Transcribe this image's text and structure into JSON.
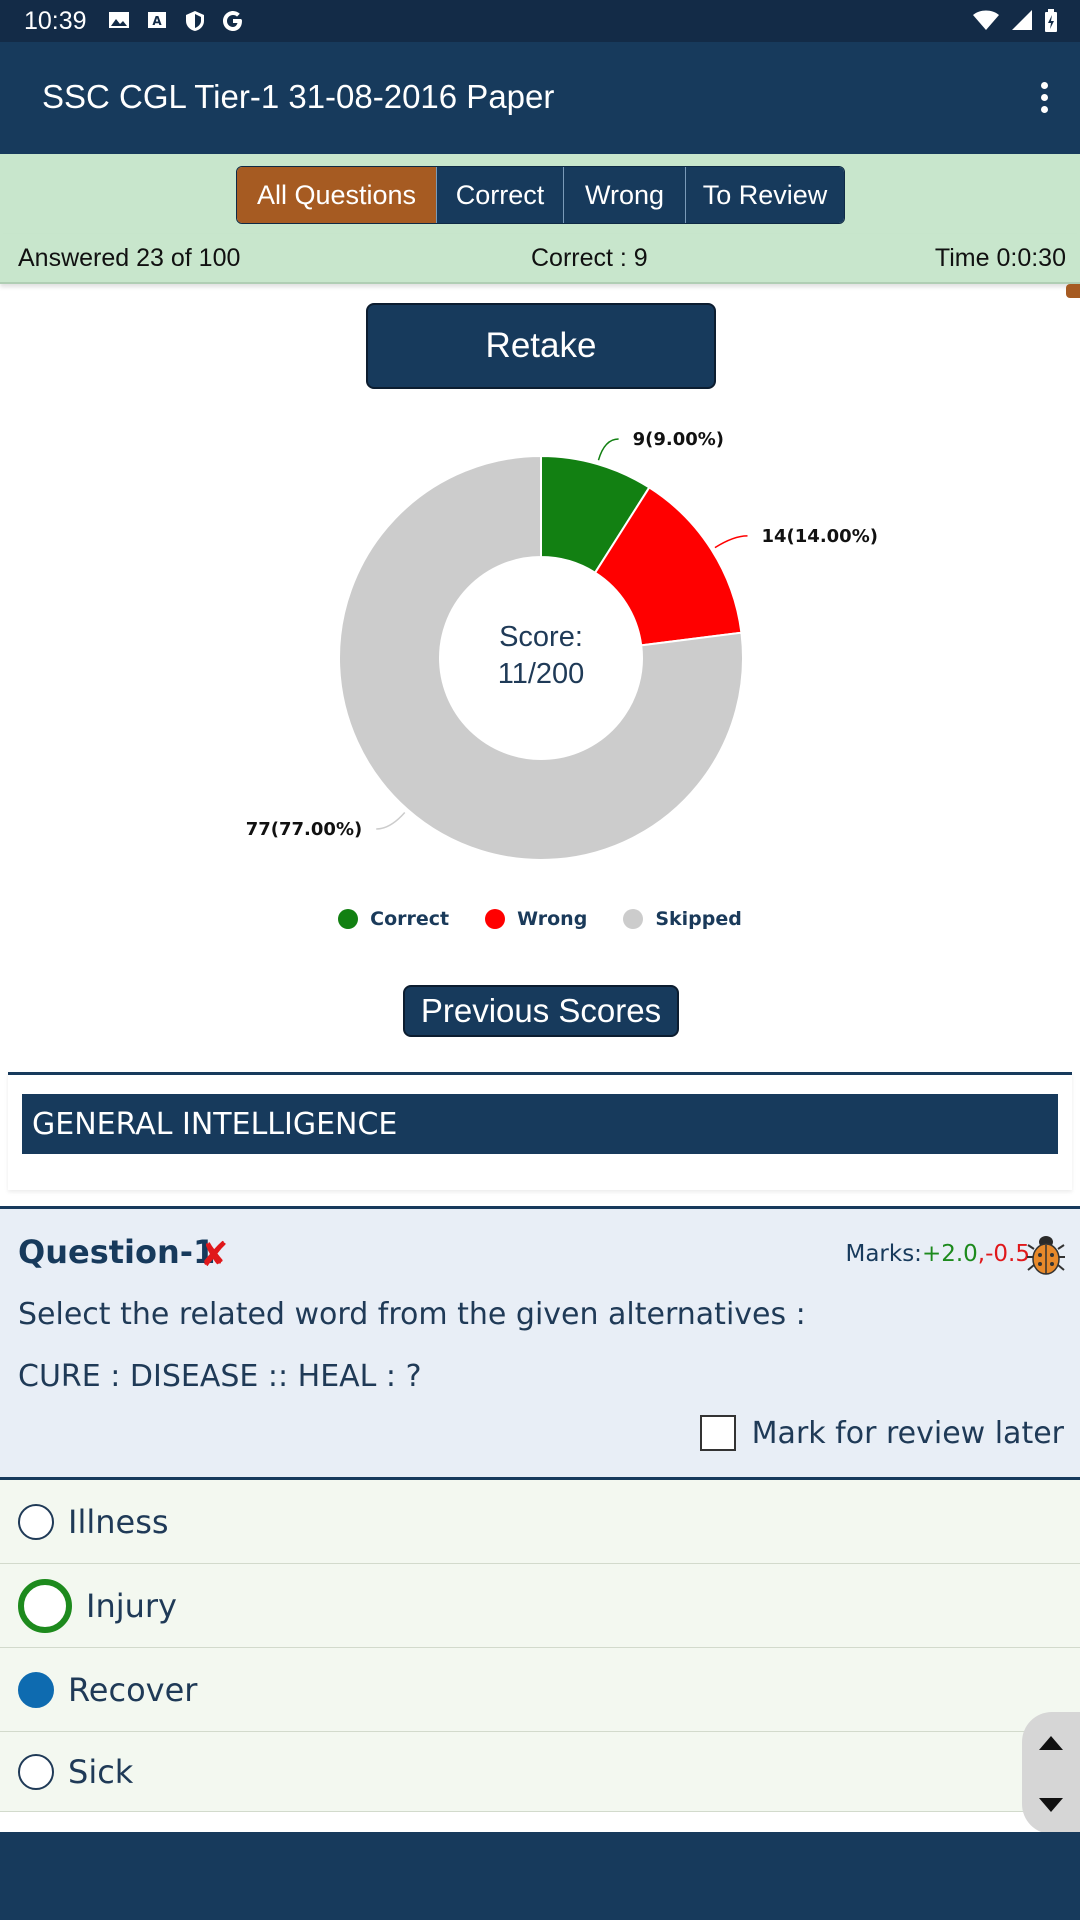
{
  "status_bar": {
    "time": "10:39",
    "left_icons": [
      "image-icon",
      "keyboard-icon",
      "shield-icon",
      "google-icon"
    ],
    "right_icons": [
      "wifi-icon",
      "signal-icon",
      "battery-icon"
    ]
  },
  "app_bar": {
    "title": "SSC CGL Tier-1 31-08-2016 Paper",
    "menu_icon": "more-vert-icon"
  },
  "filter_tabs": [
    {
      "label": "All Questions",
      "active": true
    },
    {
      "label": "Correct",
      "active": false
    },
    {
      "label": "Wrong",
      "active": false
    },
    {
      "label": "To Review",
      "active": false
    }
  ],
  "summary": {
    "answered": "Answered 23 of 100",
    "correct": "Correct : 9",
    "time": "Time 0:0:30"
  },
  "retake_label": "Retake",
  "chart_data": {
    "type": "pie",
    "donut": true,
    "center_label_line1": "Score:",
    "center_label_line2": "11/200",
    "slices": [
      {
        "name": "Correct",
        "value": 9,
        "label": "9(9.00%)",
        "color": "#128012"
      },
      {
        "name": "Wrong",
        "value": 14,
        "label": "14(14.00%)",
        "color": "#ff0000"
      },
      {
        "name": "Skipped",
        "value": 77,
        "label": "77(77.00%)",
        "color": "#cccccc"
      }
    ],
    "legend_position": "bottom"
  },
  "previous_scores_label": "Previous Scores",
  "section_title": "GENERAL INTELLIGENCE",
  "question": {
    "title": "Question-1",
    "status_icon": "wrong-cross-icon",
    "status_mark": "✘",
    "marks_label": "Marks:",
    "marks_positive": "+2.0",
    "marks_separator": ",",
    "marks_negative": "-0.5",
    "report_icon": "bug-icon",
    "text": "Select the related word from the given alternatives :",
    "analogy": "CURE : DISEASE :: HEAL : ?",
    "review_label": "Mark for review later",
    "review_checked": false
  },
  "options": [
    {
      "label": "Illness",
      "state": "none"
    },
    {
      "label": "Injury",
      "state": "correct"
    },
    {
      "label": "Recover",
      "state": "chosen"
    },
    {
      "label": "Sick",
      "state": "none"
    }
  ],
  "colors": {
    "primary": "#173a5c",
    "accent": "#a65b22",
    "band": "#c8e6cc",
    "correct": "#128012",
    "wrong": "#ff0000",
    "skipped": "#cccccc"
  }
}
